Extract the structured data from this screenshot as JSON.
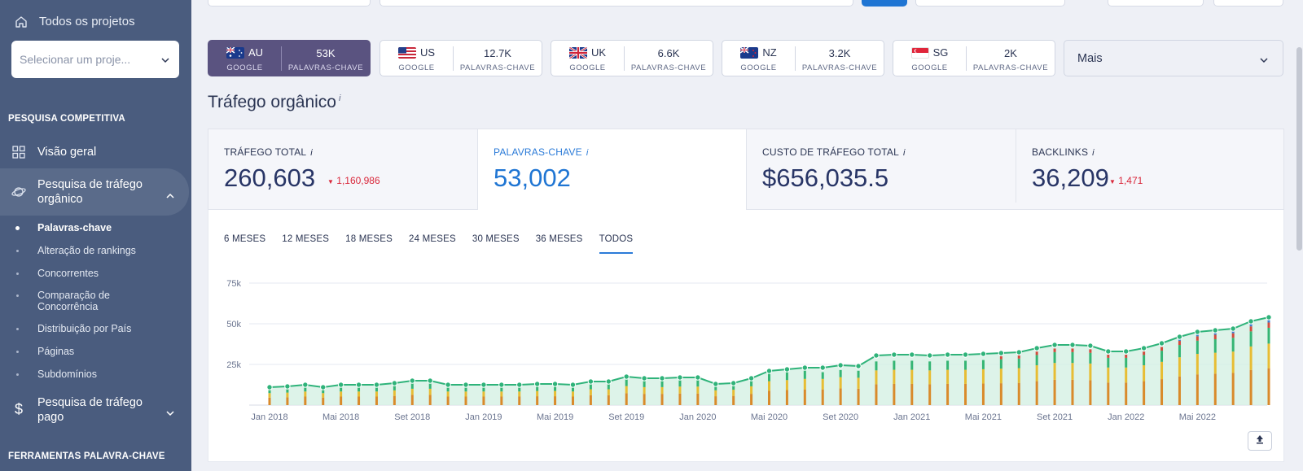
{
  "sidebar": {
    "all_projects": "Todos os projetos",
    "project_placeholder": "Selecionar um proje...",
    "section_competitive": "PESQUISA COMPETITIVA",
    "overview": "Visão geral",
    "organic_research": "Pesquisa de tráfego orgânico",
    "sub_items": [
      "Palavras-chave",
      "Alteração de rankings",
      "Concorrentes",
      "Comparação de Concorrência",
      "Distribuição por País",
      "Páginas",
      "Subdomínios"
    ],
    "paid_research": "Pesquisa de tráfego pago",
    "section_keyword_tools": "FERRAMENTAS PALAVRA-CHAVE"
  },
  "countries": [
    {
      "code": "AU",
      "engine": "GOOGLE",
      "count": "53K",
      "kw_label": "PALAVRAS-CHAVE",
      "active": true
    },
    {
      "code": "US",
      "engine": "GOOGLE",
      "count": "12.7K",
      "kw_label": "PALAVRAS-CHAVE",
      "active": false
    },
    {
      "code": "UK",
      "engine": "GOOGLE",
      "count": "6.6K",
      "kw_label": "PALAVRAS-CHAVE",
      "active": false
    },
    {
      "code": "NZ",
      "engine": "GOOGLE",
      "count": "3.2K",
      "kw_label": "PALAVRAS-CHAVE",
      "active": false
    },
    {
      "code": "SG",
      "engine": "GOOGLE",
      "count": "2K",
      "kw_label": "PALAVRAS-CHAVE",
      "active": false
    }
  ],
  "more_label": "Mais",
  "heading": "Tráfego orgânico",
  "info_mark": "i",
  "stats": [
    {
      "label": "TRÁFEGO TOTAL",
      "value": "260,603",
      "delta": "1,160,986",
      "trend": "down"
    },
    {
      "label": "PALAVRAS-CHAVE",
      "value": "53,002",
      "delta": "",
      "trend": "none"
    },
    {
      "label": "CUSTO DE TRÁFEGO TOTAL",
      "value": "$656,035.5",
      "delta": "",
      "trend": "none"
    },
    {
      "label": "BACKLINKS",
      "value": "36,209",
      "delta": "1,471",
      "trend": "down"
    }
  ],
  "range_tabs": [
    "6 MESES",
    "12 MESES",
    "18 MESES",
    "24 MESES",
    "30 MESES",
    "36 MESES",
    "TODOS"
  ],
  "active_range": "TODOS",
  "colors": {
    "sidebar": "#4a5c7e",
    "accent_purple": "#5a5380",
    "accent_blue": "#1f75d3",
    "line": "#2fb37a",
    "negative": "#d9273a"
  },
  "chart_data": {
    "type": "line",
    "x_tick_labels": [
      "Jan 2018",
      "Mai 2018",
      "Set 2018",
      "Jan 2019",
      "Mai 2019",
      "Set 2019",
      "Jan 2020",
      "Mai 2020",
      "Set 2020",
      "Jan 2021",
      "Mai 2021",
      "Set 2021",
      "Jan 2022",
      "Mai 2022"
    ],
    "y_tick_labels": [
      "25k",
      "50k",
      "75k"
    ],
    "ylim": [
      0,
      75000
    ],
    "grid": true,
    "x_start": "Jan 2018",
    "interval": "monthly",
    "series": [
      {
        "values": [
          11000,
          11500,
          12500,
          11000,
          12500,
          12500,
          12500,
          13500,
          15000,
          15000,
          12500,
          12500,
          12500,
          12500,
          12500,
          13000,
          13000,
          12500,
          14500,
          14500,
          17500,
          16500,
          16500,
          17000,
          17000,
          13000,
          13500,
          16500,
          21000,
          22000,
          23000,
          23000,
          24500,
          24000,
          30500,
          31000,
          31000,
          30500,
          31000,
          31000,
          31500,
          32000,
          32500,
          35000,
          37000,
          37000,
          36500,
          33000,
          33000,
          35000,
          38000,
          42000,
          45000,
          46000,
          47000,
          51500,
          54000
        ]
      }
    ],
    "stack_components": [
      "orange",
      "yellow",
      "green",
      "red",
      "blue"
    ]
  }
}
